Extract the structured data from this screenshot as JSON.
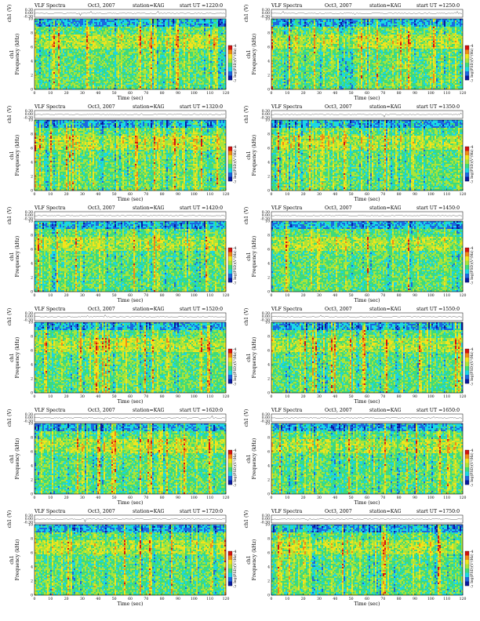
{
  "header_labels": {
    "title": "VLF Spectra",
    "station_prefix": "station=",
    "ut_prefix": "start UT =",
    "waveform_ylabel": "ch1 (V)",
    "spectrogram_ylabel_top": "ch1",
    "spectrogram_ylabel": "Frequency (kHz)",
    "colorbar_label": "log(PSD)(V²/Hz)",
    "xlabel": "Time (sec)"
  },
  "colors": {
    "scale": [
      "#0a1aa0",
      "#1c68e0",
      "#1ad7e6",
      "#3edb7a",
      "#a8e43a",
      "#f2e41c",
      "#f08a16",
      "#d41410"
    ],
    "frame": "#000000"
  },
  "chart_data": [
    {
      "type": "heatmap",
      "date": "Oct3, 2007",
      "station": "KAG",
      "start_ut": "1220:0",
      "x": {
        "label": "Time (sec)",
        "range": [
          0,
          120
        ],
        "ticks": [
          0,
          10,
          20,
          30,
          40,
          50,
          60,
          70,
          80,
          90,
          100,
          110,
          120
        ]
      },
      "y": {
        "label": "Frequency (kHz)",
        "range": [
          0,
          10
        ],
        "ticks": [
          0,
          2,
          4,
          6,
          8,
          10
        ]
      },
      "waveform": {
        "label": "ch1 (V)",
        "ticks": [
          "0.30",
          "0.00",
          "-0.30"
        ]
      },
      "colorbar": {
        "label": "log(PSD)(V²/Hz)",
        "ticks": [
          "-4",
          "-7"
        ]
      }
    },
    {
      "type": "heatmap",
      "date": "Oct3, 2007",
      "station": "KAG",
      "start_ut": "1250:0",
      "x": {
        "label": "Time (sec)",
        "range": [
          0,
          120
        ],
        "ticks": [
          0,
          10,
          20,
          30,
          40,
          50,
          60,
          70,
          80,
          90,
          100,
          110,
          120
        ]
      },
      "y": {
        "label": "Frequency (kHz)",
        "range": [
          0,
          10
        ],
        "ticks": [
          0,
          2,
          4,
          6,
          8,
          10
        ]
      },
      "waveform": {
        "label": "ch1 (V)",
        "ticks": [
          "0.30",
          "0.00",
          "-0.30"
        ]
      },
      "colorbar": {
        "label": "log(PSD)(V²/Hz)",
        "ticks": [
          "-4",
          "-7"
        ]
      }
    },
    {
      "type": "heatmap",
      "date": "Oct3, 2007",
      "station": "KAG",
      "start_ut": "1320:0",
      "x": {
        "label": "Time (sec)",
        "range": [
          0,
          120
        ],
        "ticks": [
          0,
          10,
          20,
          30,
          40,
          50,
          60,
          70,
          80,
          90,
          100,
          110,
          120
        ]
      },
      "y": {
        "label": "Frequency (kHz)",
        "range": [
          0,
          10
        ],
        "ticks": [
          0,
          2,
          4,
          6,
          8,
          10
        ]
      },
      "waveform": {
        "label": "ch1 (V)",
        "ticks": [
          "0.30",
          "0.00",
          "-0.30"
        ]
      },
      "colorbar": {
        "label": "log(PSD)(V²/Hz)",
        "ticks": [
          "-4",
          "-7"
        ]
      }
    },
    {
      "type": "heatmap",
      "date": "Oct3, 2007",
      "station": "KAG",
      "start_ut": "1350:0",
      "x": {
        "label": "Time (sec)",
        "range": [
          0,
          120
        ],
        "ticks": [
          0,
          10,
          20,
          30,
          40,
          50,
          60,
          70,
          80,
          90,
          100,
          110,
          120
        ]
      },
      "y": {
        "label": "Frequency (kHz)",
        "range": [
          0,
          10
        ],
        "ticks": [
          0,
          2,
          4,
          6,
          8,
          10
        ]
      },
      "waveform": {
        "label": "ch1 (V)",
        "ticks": [
          "0.30",
          "0.00",
          "-0.30"
        ]
      },
      "colorbar": {
        "label": "log(PSD)(V²/Hz)",
        "ticks": [
          "-4",
          "-7"
        ]
      }
    },
    {
      "type": "heatmap",
      "date": "Oct3, 2007",
      "station": "KAG",
      "start_ut": "1420:0",
      "x": {
        "label": "Time (sec)",
        "range": [
          0,
          120
        ],
        "ticks": [
          0,
          10,
          20,
          30,
          40,
          50,
          60,
          70,
          80,
          90,
          100,
          110,
          120
        ]
      },
      "y": {
        "label": "Frequency (kHz)",
        "range": [
          0,
          10
        ],
        "ticks": [
          0,
          2,
          4,
          6,
          8,
          10
        ]
      },
      "waveform": {
        "label": "ch1 (V)",
        "ticks": [
          "0.30",
          "0.00",
          "-0.30"
        ]
      },
      "colorbar": {
        "label": "log(PSD)(V²/Hz)",
        "ticks": [
          "-4",
          "-7"
        ]
      }
    },
    {
      "type": "heatmap",
      "date": "Oct3, 2007",
      "station": "KAG",
      "start_ut": "1450:0",
      "x": {
        "label": "Time (sec)",
        "range": [
          0,
          120
        ],
        "ticks": [
          0,
          10,
          20,
          30,
          40,
          50,
          60,
          70,
          80,
          90,
          100,
          110,
          120
        ]
      },
      "y": {
        "label": "Frequency (kHz)",
        "range": [
          0,
          10
        ],
        "ticks": [
          0,
          2,
          4,
          6,
          8,
          10
        ]
      },
      "waveform": {
        "label": "ch1 (V)",
        "ticks": [
          "0.30",
          "0.00",
          "-0.30"
        ]
      },
      "colorbar": {
        "label": "log(PSD)(V²/Hz)",
        "ticks": [
          "-4",
          "-7"
        ]
      }
    },
    {
      "type": "heatmap",
      "date": "Oct3, 2007",
      "station": "KAG",
      "start_ut": "1520:0",
      "x": {
        "label": "Time (sec)",
        "range": [
          0,
          120
        ],
        "ticks": [
          0,
          10,
          20,
          30,
          40,
          50,
          60,
          70,
          80,
          90,
          100,
          110,
          120
        ]
      },
      "y": {
        "label": "Frequency (kHz)",
        "range": [
          0,
          10
        ],
        "ticks": [
          0,
          2,
          4,
          6,
          8,
          10
        ]
      },
      "waveform": {
        "label": "ch1 (V)",
        "ticks": [
          "0.30",
          "0.00",
          "-0.30"
        ]
      },
      "colorbar": {
        "label": "log(PSD)(V²/Hz)",
        "ticks": [
          "-4",
          "-7"
        ]
      }
    },
    {
      "type": "heatmap",
      "date": "Oct3, 2007",
      "station": "KAG",
      "start_ut": "1550:0",
      "x": {
        "label": "Time (sec)",
        "range": [
          0,
          120
        ],
        "ticks": [
          0,
          10,
          20,
          30,
          40,
          50,
          60,
          70,
          80,
          90,
          100,
          110,
          120
        ]
      },
      "y": {
        "label": "Frequency (kHz)",
        "range": [
          0,
          10
        ],
        "ticks": [
          0,
          2,
          4,
          6,
          8,
          10
        ]
      },
      "waveform": {
        "label": "ch1 (V)",
        "ticks": [
          "0.30",
          "0.00",
          "-0.30"
        ]
      },
      "colorbar": {
        "label": "log(PSD)(V²/Hz)",
        "ticks": [
          "-4",
          "-7"
        ]
      }
    },
    {
      "type": "heatmap",
      "date": "Oct3, 2007",
      "station": "KAG",
      "start_ut": "1620:0",
      "x": {
        "label": "Time (sec)",
        "range": [
          0,
          120
        ],
        "ticks": [
          0,
          10,
          20,
          30,
          40,
          50,
          60,
          70,
          80,
          90,
          100,
          110,
          120
        ]
      },
      "y": {
        "label": "Frequency (kHz)",
        "range": [
          0,
          10
        ],
        "ticks": [
          0,
          2,
          4,
          6,
          8,
          10
        ]
      },
      "waveform": {
        "label": "ch1 (V)",
        "ticks": [
          "0.30",
          "0.00",
          "-0.30"
        ]
      },
      "colorbar": {
        "label": "log(PSD)(V²/Hz)",
        "ticks": [
          "-4",
          "-7"
        ]
      }
    },
    {
      "type": "heatmap",
      "date": "Oct3, 2007",
      "station": "KAG",
      "start_ut": "1650:0",
      "x": {
        "label": "Time (sec)",
        "range": [
          0,
          120
        ],
        "ticks": [
          0,
          10,
          20,
          30,
          40,
          50,
          60,
          70,
          80,
          90,
          100,
          110,
          120
        ]
      },
      "y": {
        "label": "Frequency (kHz)",
        "range": [
          0,
          10
        ],
        "ticks": [
          0,
          2,
          4,
          6,
          8,
          10
        ]
      },
      "waveform": {
        "label": "ch1 (V)",
        "ticks": [
          "0.30",
          "0.00",
          "-0.30"
        ]
      },
      "colorbar": {
        "label": "log(PSD)(V²/Hz)",
        "ticks": [
          "-4",
          "-7"
        ]
      }
    },
    {
      "type": "heatmap",
      "date": "Oct3, 2007",
      "station": "KAG",
      "start_ut": "1720:0",
      "x": {
        "label": "Time (sec)",
        "range": [
          0,
          120
        ],
        "ticks": [
          0,
          10,
          20,
          30,
          40,
          50,
          60,
          70,
          80,
          90,
          100,
          110,
          120
        ]
      },
      "y": {
        "label": "Frequency (kHz)",
        "range": [
          0,
          10
        ],
        "ticks": [
          0,
          2,
          4,
          6,
          8,
          10
        ]
      },
      "waveform": {
        "label": "ch1 (V)",
        "ticks": [
          "0.30",
          "0.00",
          "-0.30"
        ]
      },
      "colorbar": {
        "label": "log(PSD)(V²/Hz)",
        "ticks": [
          "-4",
          "-7"
        ]
      }
    },
    {
      "type": "heatmap",
      "date": "Oct3, 2007",
      "station": "KAG",
      "start_ut": "1750:0",
      "x": {
        "label": "Time (sec)",
        "range": [
          0,
          120
        ],
        "ticks": [
          0,
          10,
          20,
          30,
          40,
          50,
          60,
          70,
          80,
          90,
          100,
          110,
          120
        ]
      },
      "y": {
        "label": "Frequency (kHz)",
        "range": [
          0,
          10
        ],
        "ticks": [
          0,
          2,
          4,
          6,
          8,
          10
        ]
      },
      "waveform": {
        "label": "ch1 (V)",
        "ticks": [
          "0.30",
          "0.00",
          "-0.30"
        ]
      },
      "colorbar": {
        "label": "log(PSD)(V²/Hz)",
        "ticks": [
          "-4",
          "-7"
        ]
      }
    }
  ]
}
